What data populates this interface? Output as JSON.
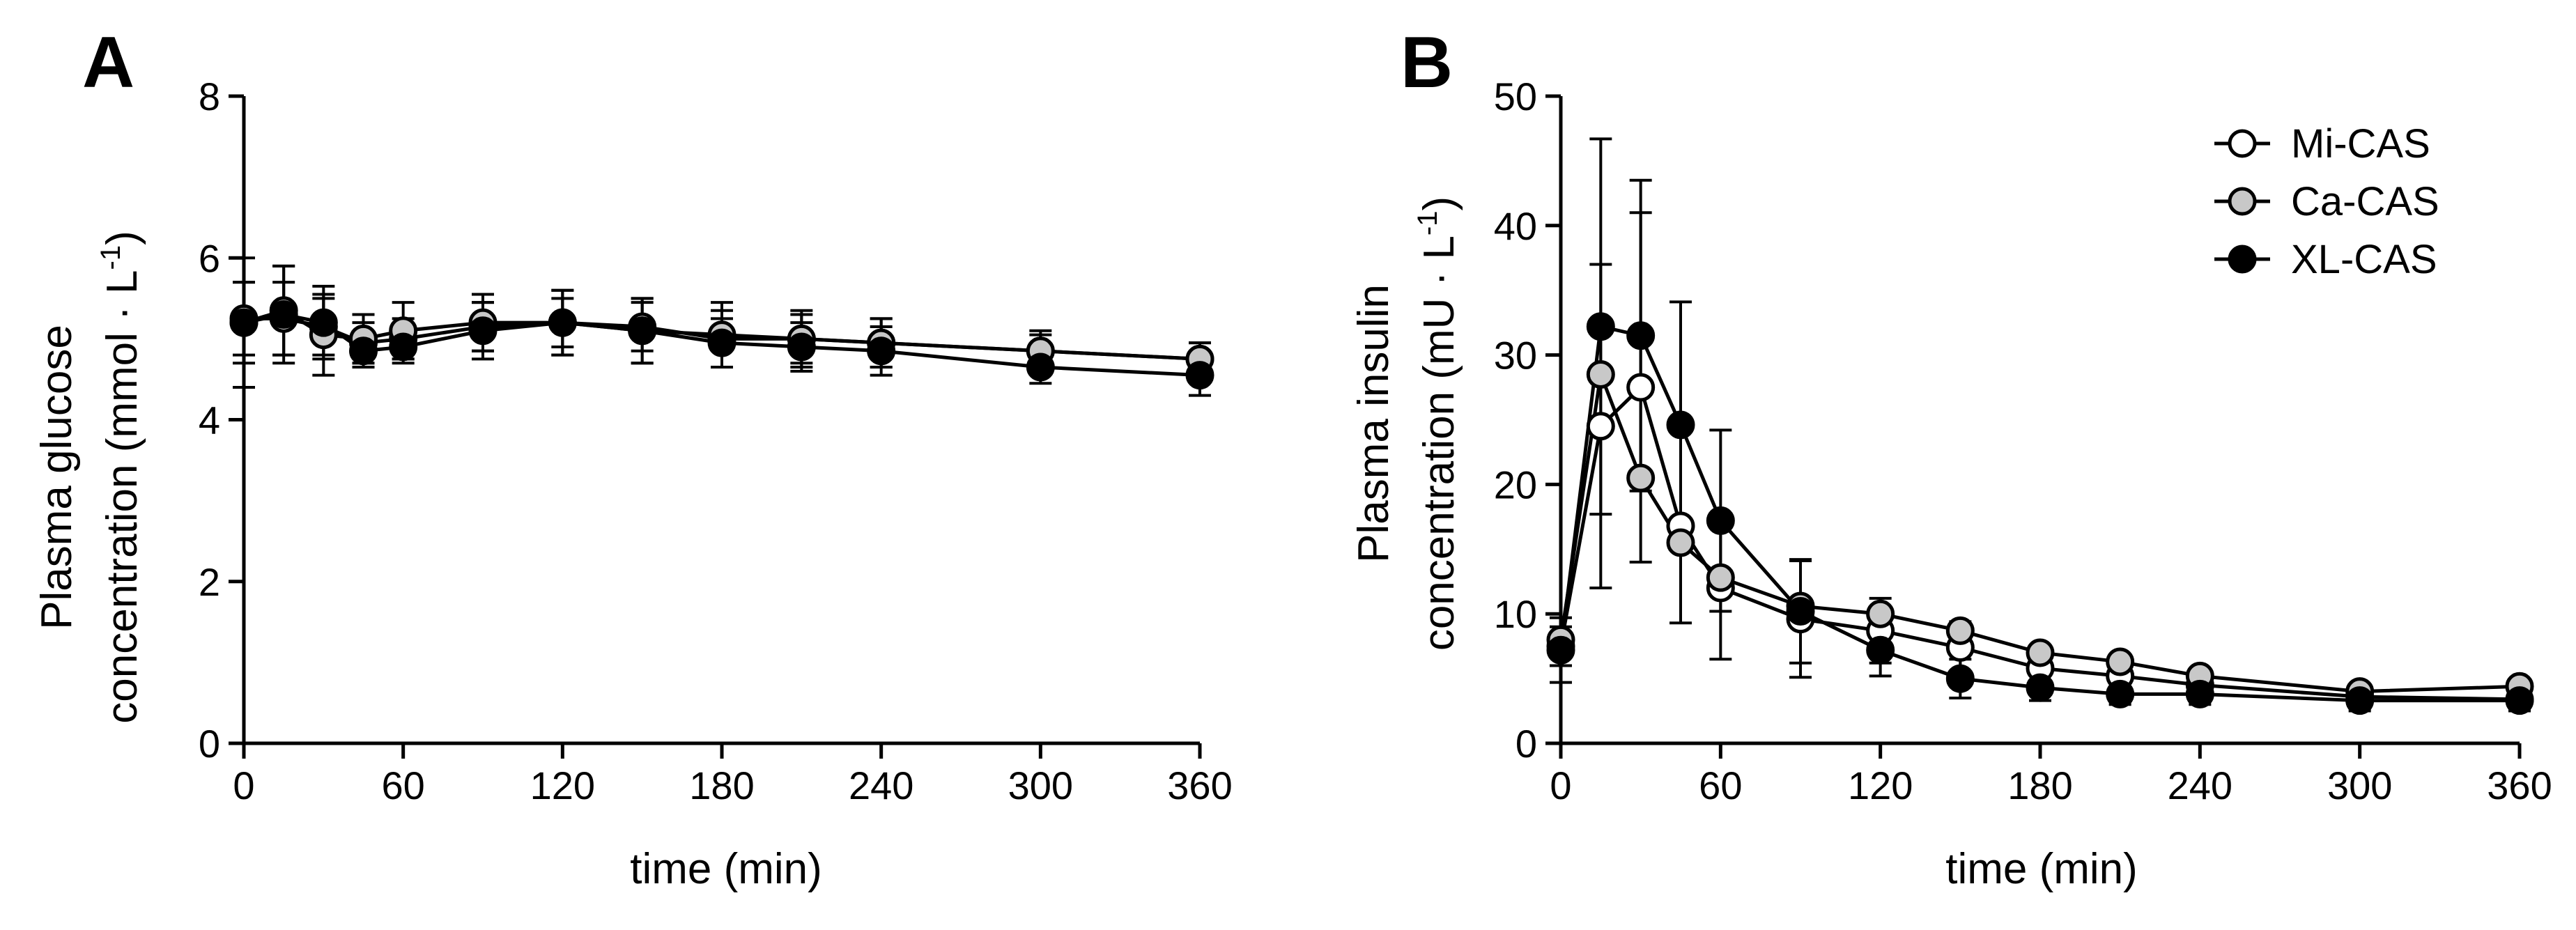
{
  "chart_data": [
    {
      "type": "line",
      "panel": "A",
      "title": "",
      "xlabel": "time (min)",
      "ylabel_lines": [
        "Plasma glucose",
        "concentration (mmol · L"
      ],
      "ylabel_sup": "-1",
      "ylabel_tail": ")",
      "xlim": [
        0,
        360
      ],
      "ylim": [
        0,
        8
      ],
      "xticks": [
        0,
        60,
        120,
        180,
        240,
        300,
        360
      ],
      "yticks": [
        0,
        2,
        4,
        6,
        8
      ],
      "grid": false,
      "x": [
        0,
        15,
        30,
        45,
        60,
        90,
        120,
        150,
        180,
        210,
        240,
        300,
        360
      ],
      "series": [
        {
          "name": "Mi-CAS",
          "color": "#ffffff",
          "values": [
            5.25,
            5.25,
            5.15,
            4.95,
            5.0,
            5.15,
            5.2,
            5.15,
            5.0,
            5.0,
            4.95,
            4.85,
            4.75
          ],
          "errors": [
            0.45,
            0.45,
            0.35,
            0.25,
            0.25,
            0.3,
            0.3,
            0.3,
            0.35,
            0.3,
            0.3,
            0.2,
            0.2
          ]
        },
        {
          "name": "Ca-CAS",
          "color": "#c8c8c8",
          "values": [
            5.2,
            5.35,
            5.05,
            5.0,
            5.1,
            5.2,
            5.2,
            5.1,
            5.05,
            5.0,
            4.95,
            4.85,
            4.75
          ],
          "errors": [
            0.5,
            0.55,
            0.5,
            0.3,
            0.35,
            0.35,
            0.4,
            0.4,
            0.4,
            0.35,
            0.3,
            0.25,
            0.2
          ]
        },
        {
          "name": "XL-CAS",
          "color": "#000000",
          "values": [
            5.2,
            5.3,
            5.2,
            4.85,
            4.9,
            5.1,
            5.2,
            5.1,
            4.95,
            4.9,
            4.85,
            4.65,
            4.55
          ],
          "errors": [
            0.8,
            0.6,
            0.45,
            0.2,
            0.2,
            0.35,
            0.4,
            0.4,
            0.3,
            0.3,
            0.3,
            0.2,
            0.25
          ]
        }
      ]
    },
    {
      "type": "line",
      "panel": "B",
      "title": "",
      "xlabel": "time (min)",
      "ylabel_lines": [
        "Plasma insulin",
        "concentration (mU · L"
      ],
      "ylabel_sup": "-1",
      "ylabel_tail": ")",
      "xlim": [
        0,
        360
      ],
      "ylim": [
        0,
        50
      ],
      "xticks": [
        0,
        60,
        120,
        180,
        240,
        300,
        360
      ],
      "yticks": [
        0,
        10,
        20,
        30,
        40,
        50
      ],
      "grid": false,
      "legend_position": "top-right",
      "x": [
        0,
        15,
        30,
        45,
        60,
        90,
        120,
        150,
        180,
        210,
        240,
        300,
        360
      ],
      "series": [
        {
          "name": "Mi-CAS",
          "color": "#ffffff",
          "values": [
            7.5,
            24.5,
            27.5,
            16.8,
            12.0,
            9.6,
            8.7,
            7.4,
            5.8,
            5.2,
            4.5,
            3.6,
            3.4
          ],
          "errors": [
            1.5,
            12.5,
            13.5,
            7.5,
            5.5,
            4.5,
            2.5,
            2.0,
            1.5,
            1.2,
            1.0,
            0.8,
            0.8
          ]
        },
        {
          "name": "Ca-CAS",
          "color": "#c8c8c8",
          "values": [
            8.0,
            28.5,
            20.5,
            15.5,
            12.8,
            10.6,
            10.0,
            8.7,
            7.0,
            6.3,
            5.2,
            4.0,
            4.4
          ]
        },
        {
          "name": "XL-CAS",
          "color": "#000000",
          "values": [
            7.2,
            32.2,
            31.5,
            24.6,
            17.2,
            10.2,
            7.2,
            5.0,
            4.3,
            3.8,
            3.8,
            3.3,
            3.3
          ],
          "errors": [
            2.5,
            14.5,
            12.0,
            9.5,
            7.0,
            4.0,
            2.0,
            1.5,
            1.0,
            0.8,
            0.8,
            0.8,
            0.8
          ]
        }
      ]
    }
  ]
}
